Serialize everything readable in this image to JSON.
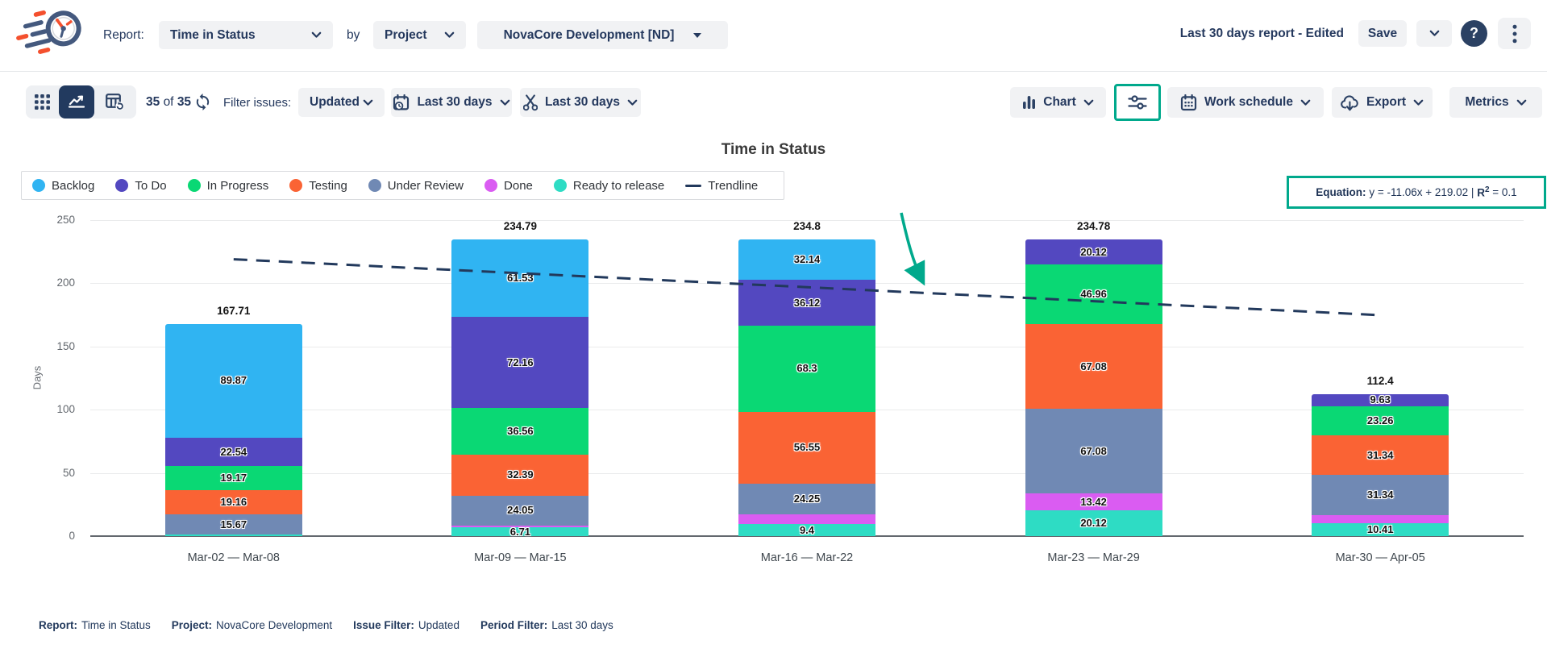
{
  "header": {
    "report_label": "Report:",
    "report_value": "Time in Status",
    "by_label": "by",
    "group_by_value": "Project",
    "project_value": "NovaCore Development [ND]",
    "report_name": "Last 30 days report - Edited",
    "save_label": "Save"
  },
  "toolbar": {
    "count_shown": "35",
    "count_of": "of",
    "count_total": "35",
    "filter_label": "Filter issues:",
    "issue_filter_value": "Updated",
    "calendar_range_value": "Last 30 days",
    "sprint_range_value": "Last 30 days",
    "chart_button": "Chart",
    "work_schedule_button": "Work schedule",
    "export_button": "Export",
    "metrics_button": "Metrics"
  },
  "chart_data": {
    "type": "bar",
    "stacked": true,
    "title": "Time in Status",
    "ylabel": "Days",
    "ylim": [
      0,
      250
    ],
    "yticks": [
      0,
      50,
      100,
      150,
      200,
      250
    ],
    "categories": [
      "Mar-02 — Mar-08",
      "Mar-09 — Mar-15",
      "Mar-16 — Mar-22",
      "Mar-23 — Mar-29",
      "Mar-30 — Apr-05"
    ],
    "series": [
      {
        "name": "Backlog",
        "color": "#30b4f2",
        "values": [
          89.87,
          61.53,
          32.14,
          0,
          0
        ]
      },
      {
        "name": "To Do",
        "color": "#5348c0",
        "values": [
          22.54,
          72.16,
          36.12,
          20.12,
          9.63
        ]
      },
      {
        "name": "In Progress",
        "color": "#0ad874",
        "values": [
          19.17,
          36.56,
          68.3,
          46.96,
          23.26
        ]
      },
      {
        "name": "Testing",
        "color": "#fa6334",
        "values": [
          19.16,
          32.39,
          56.55,
          67.08,
          31.34
        ]
      },
      {
        "name": "Under Review",
        "color": "#7089b4",
        "values": [
          15.67,
          24.05,
          24.25,
          67.08,
          31.34
        ]
      },
      {
        "name": "Done",
        "color": "#da5cf2",
        "values": [
          0,
          1.39,
          8.05,
          13.42,
          6.42
        ],
        "show_label": [
          false,
          false,
          false,
          true,
          false
        ]
      },
      {
        "name": "Ready to release",
        "color": "#2edcc4",
        "values": [
          1.3,
          6.71,
          9.4,
          20.12,
          10.41
        ],
        "show_label": [
          false,
          true,
          true,
          true,
          true
        ]
      }
    ],
    "totals": [
      167.71,
      234.79,
      234.8,
      234.78,
      112.4
    ],
    "trendline": {
      "label": "Trendline",
      "values": [
        219.02,
        207.96,
        196.9,
        185.84,
        174.78
      ]
    },
    "equation": {
      "label": "Equation:",
      "formula": "y = -11.06x + 219.02",
      "separator": "|",
      "r_label": "R",
      "r_sup": "2",
      "r_value": "= 0.1"
    },
    "legend_position": "top-left",
    "grid": true
  },
  "footer": {
    "report_label": "Report:",
    "report_value": "Time in Status",
    "project_label": "Project:",
    "project_value": "NovaCore Development",
    "issue_filter_label": "Issue Filter:",
    "issue_filter_value": "Updated",
    "period_filter_label": "Period Filter:",
    "period_filter_value": "Last 30 days"
  }
}
